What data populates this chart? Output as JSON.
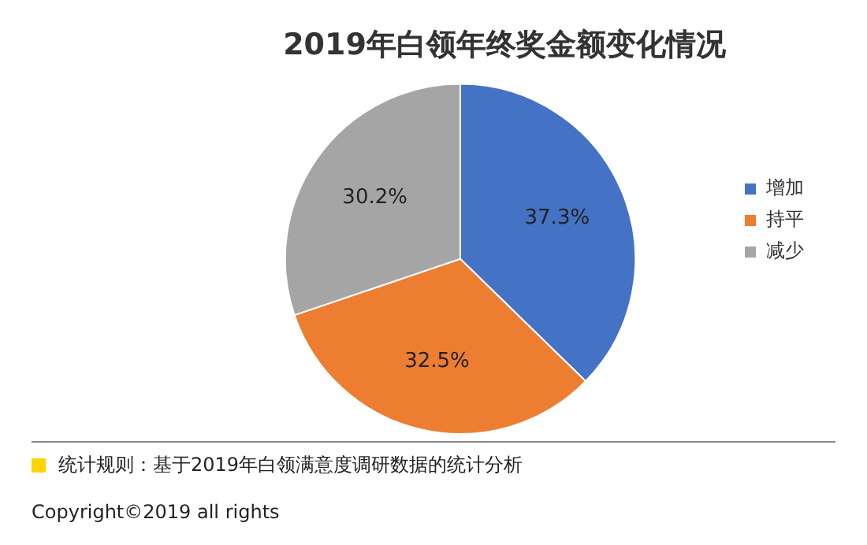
{
  "chart_data": {
    "type": "pie",
    "title": "2019年白领年终奖金额变化情况",
    "categories": [
      "增加",
      "持平",
      "减少"
    ],
    "values": [
      37.3,
      32.5,
      30.2
    ],
    "colors": [
      "#4472c4",
      "#ed7d31",
      "#a5a5a5"
    ],
    "value_labels": [
      "37.3%",
      "32.5%",
      "30.2%"
    ],
    "legend": "right",
    "annotations": [
      "统计规则：基于2019年白领满意度调研数据的统计分析",
      "Copyright©2019 all rights"
    ]
  }
}
